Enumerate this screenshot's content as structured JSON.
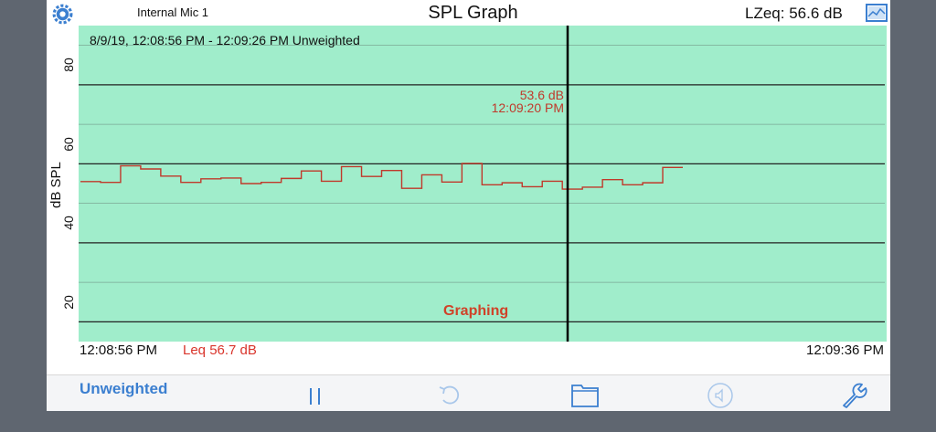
{
  "header": {
    "input_source": "Internal Mic 1",
    "title": "SPL Graph",
    "lzeq": "LZeq: 56.6 dB",
    "icons": [
      "gear-icon",
      "graph-view-icon"
    ]
  },
  "graph": {
    "range_text": "8/9/19, 12:08:56 PM - 12:09:26 PM  Unweighted",
    "y_axis_title": "dB SPL",
    "y_ticks": [
      "80",
      "60",
      "40",
      "20"
    ],
    "cursor_value": "53.6 dB",
    "cursor_time": "12:09:20 PM",
    "status": "Graphing",
    "time_start": "12:08:56 PM",
    "leq": "Leq 56.7 dB",
    "time_end": "12:09:36 PM",
    "colors": {
      "background": "#a0edcb",
      "trace": "#c0392b",
      "cursor": "#000000",
      "gridline": "#222222"
    }
  },
  "chart_data": {
    "type": "line",
    "ylabel": "dB SPL",
    "ylim": [
      15,
      95
    ],
    "x_range_seconds": [
      0,
      40
    ],
    "series": [
      {
        "step": true,
        "values": [
          55.5,
          55.3,
          59.5,
          58.7,
          56.9,
          55.3,
          56.2,
          56.4,
          55.0,
          55.3,
          56.3,
          58.2,
          55.6,
          59.3,
          56.8,
          58.3,
          53.8,
          57.2,
          55.4,
          60.1,
          54.7,
          55.2,
          54.2,
          55.6,
          53.6,
          54.1,
          56.0,
          54.7,
          55.2,
          59.1,
          59.1
        ]
      }
    ],
    "cursor": {
      "value_db": 53.6,
      "time": "12:09:20 PM"
    },
    "grid": true
  },
  "toolbar": {
    "weighting_label": "Unweighted",
    "icons": [
      "pause-icon",
      "undo-icon",
      "folder-icon",
      "speaker-icon",
      "wrench-icon"
    ]
  }
}
